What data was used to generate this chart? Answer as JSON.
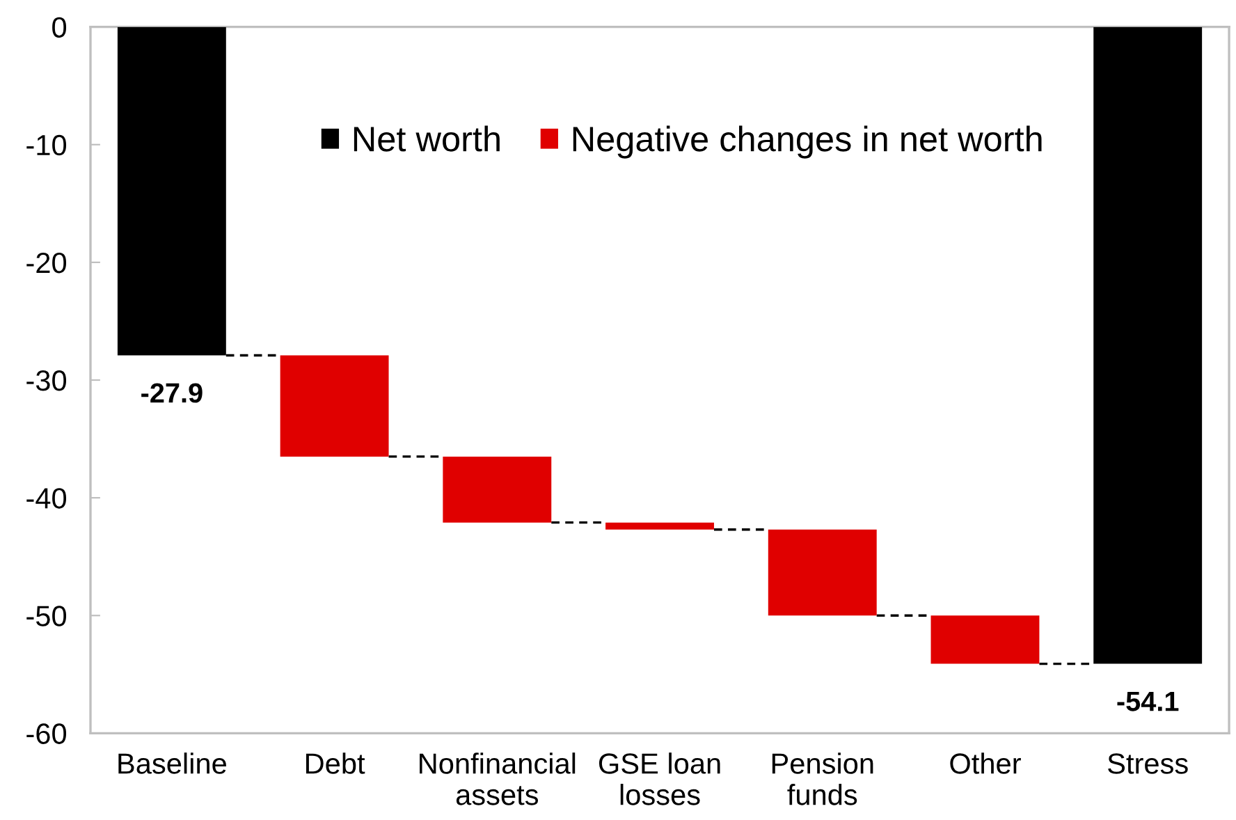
{
  "chart_data": {
    "type": "bar",
    "categories": [
      "Baseline",
      "Debt",
      "Nonfinancial\nassets",
      "GSE loan\nlosses",
      "Pension\nfunds",
      "Other",
      "Stress"
    ],
    "series": [
      {
        "name": "Net worth",
        "color": "#000000",
        "values": [
          -27.9,
          null,
          null,
          null,
          null,
          null,
          -54.1
        ],
        "value_labels": [
          "-27.9",
          null,
          null,
          null,
          null,
          null,
          "-54.1"
        ]
      },
      {
        "name": "Negative changes in net worth",
        "color": "#e00000",
        "values": [
          null,
          -8.6,
          -5.6,
          -0.6,
          -7.3,
          -4.1,
          null
        ],
        "base": [
          null,
          -27.9,
          -36.5,
          -42.1,
          -42.7,
          -50.0,
          null
        ]
      }
    ],
    "ylim": [
      -60,
      0
    ],
    "yticks": [
      0,
      -10,
      -20,
      -30,
      -40,
      -50,
      -60
    ],
    "legend": "top",
    "line_style": "dashed"
  }
}
